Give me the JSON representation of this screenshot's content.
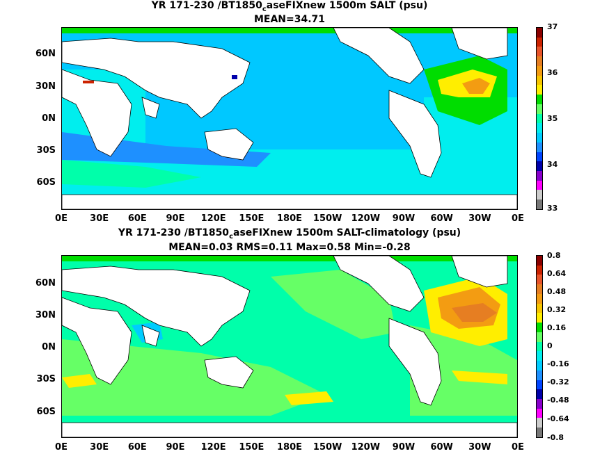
{
  "panels": [
    {
      "title_pre": "YR 171-230 /BT1850",
      "title_sub": "c",
      "title_post": "aseFIXnew 1500m SALT (psu)",
      "stats": "MEAN=34.71",
      "lat_labels": [
        "60N",
        "30N",
        "0N",
        "30S",
        "60S"
      ],
      "lon_labels": [
        "0E",
        "30E",
        "60E",
        "90E",
        "120E",
        "150E",
        "180E",
        "150W",
        "120W",
        "90W",
        "60W",
        "30W",
        "0E"
      ],
      "colorbar": {
        "labels": [
          "37",
          "36",
          "35",
          "34",
          "33"
        ],
        "colors": [
          "#8b0000",
          "#cc2200",
          "#e8542a",
          "#e67e22",
          "#f39c12",
          "#f7c600",
          "#ffee00",
          "#00dd00",
          "#66ff66",
          "#00ffaa",
          "#00eeee",
          "#00ccff",
          "#1e90ff",
          "#0044ff",
          "#0000aa",
          "#8800cc",
          "#ff00ff",
          "#cccccc",
          "#777777"
        ]
      }
    },
    {
      "title_pre": "YR 171-230 /BT1850",
      "title_sub": "c",
      "title_post": "aseFIXnew 1500m SALT-climatology (psu)",
      "stats": "MEAN=0.03   RMS=0.11   Max=0.58   Min=-0.28",
      "lat_labels": [
        "60N",
        "30N",
        "0N",
        "30S",
        "60S"
      ],
      "lon_labels": [
        "0E",
        "30E",
        "60E",
        "90E",
        "120E",
        "150E",
        "180E",
        "150W",
        "120W",
        "90W",
        "60W",
        "30W",
        "0E"
      ],
      "colorbar": {
        "labels": [
          "0.8",
          "0.64",
          "0.48",
          "0.32",
          "0.16",
          "0",
          "-0.16",
          "-0.32",
          "-0.48",
          "-0.64",
          "-0.8"
        ],
        "colors": [
          "#8b0000",
          "#cc2200",
          "#e8542a",
          "#e67e22",
          "#f39c12",
          "#f7c600",
          "#ffee00",
          "#00dd00",
          "#66ff66",
          "#00ffaa",
          "#00eeee",
          "#00ccff",
          "#1e90ff",
          "#0044ff",
          "#0000aa",
          "#8800cc",
          "#ff00ff",
          "#cccccc",
          "#777777"
        ]
      }
    }
  ]
}
